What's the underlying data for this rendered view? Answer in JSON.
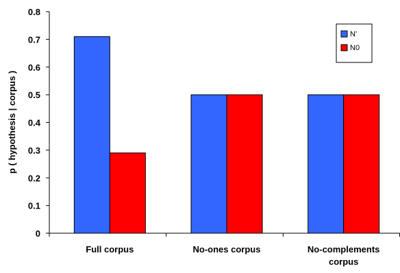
{
  "chart_data": {
    "type": "bar",
    "categories": [
      "Full corpus",
      "No-ones corpus",
      "No-complements corpus"
    ],
    "category_lines": [
      [
        "Full corpus"
      ],
      [
        "No-ones corpus"
      ],
      [
        "No-complements",
        "corpus"
      ]
    ],
    "series": [
      {
        "name": "N'",
        "values": [
          0.71,
          0.5,
          0.5
        ],
        "color": "#3366ff"
      },
      {
        "name": "N0",
        "values": [
          0.29,
          0.5,
          0.5
        ],
        "color": "#ff0000"
      }
    ],
    "ylabel": "p ( hypothesis | corpus )",
    "xlabel": "",
    "title": "",
    "ylim": [
      0,
      0.8
    ],
    "yticks": [
      "0",
      "0.1",
      "0.2",
      "0.3",
      "0.4",
      "0.5",
      "0.6",
      "0.7",
      "0.8"
    ],
    "grid": false,
    "legend_position": "top-right"
  }
}
